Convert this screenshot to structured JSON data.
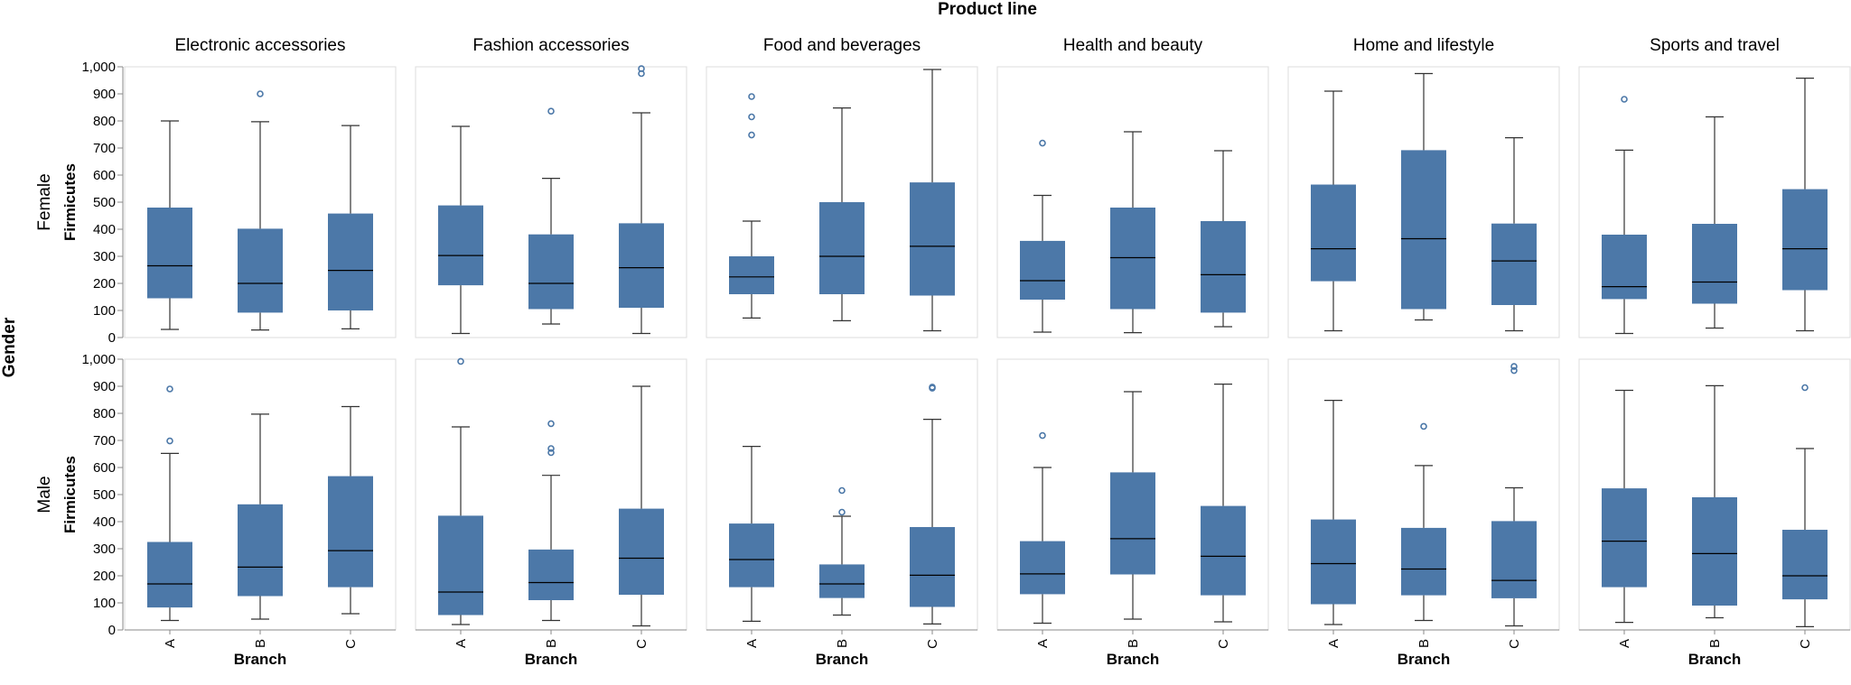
{
  "chart_data": {
    "type": "box",
    "title": "Product line",
    "row_title": "Gender",
    "xlabel": "Branch",
    "ylabel": "Firmicutes",
    "ylim": [
      0,
      1000
    ],
    "yticks": [
      0,
      100,
      200,
      300,
      400,
      500,
      600,
      700,
      800,
      900,
      1000
    ],
    "ytick_labels": [
      "0",
      "100",
      "200",
      "300",
      "400",
      "500",
      "600",
      "700",
      "800",
      "900",
      "1,000"
    ],
    "categories": [
      "A",
      "B",
      "C"
    ],
    "columns": [
      "Electronic accessories",
      "Fashion accessories",
      "Food and beverages",
      "Health and beauty",
      "Home and lifestyle",
      "Sports and travel"
    ],
    "rows": [
      "Female",
      "Male"
    ],
    "colors": {
      "box": "#4c78a8",
      "outlier": "#4c78a8",
      "whisker": "#333333",
      "median": "#000000",
      "panel_border": "#dddddd"
    },
    "boxes": [
      [
        [
          {
            "min": 30,
            "q1": 145,
            "median": 265,
            "q3": 480,
            "max": 800,
            "outliers": []
          },
          {
            "min": 28,
            "q1": 92,
            "median": 200,
            "q3": 402,
            "max": 797,
            "outliers": [
              900
            ]
          },
          {
            "min": 32,
            "q1": 100,
            "median": 248,
            "q3": 458,
            "max": 783,
            "outliers": []
          }
        ],
        [
          {
            "min": 15,
            "q1": 193,
            "median": 303,
            "q3": 488,
            "max": 780,
            "outliers": []
          },
          {
            "min": 50,
            "q1": 105,
            "median": 200,
            "q3": 381,
            "max": 588,
            "outliers": [
              836
            ]
          },
          {
            "min": 15,
            "q1": 110,
            "median": 258,
            "q3": 422,
            "max": 830,
            "outliers": [
              975,
              993
            ]
          }
        ],
        [
          {
            "min": 72,
            "q1": 160,
            "median": 224,
            "q3": 300,
            "max": 430,
            "outliers": [
              748,
              815,
              890
            ]
          },
          {
            "min": 62,
            "q1": 160,
            "median": 300,
            "q3": 500,
            "max": 848,
            "outliers": []
          },
          {
            "min": 25,
            "q1": 155,
            "median": 337,
            "q3": 573,
            "max": 990,
            "outliers": []
          }
        ],
        [
          {
            "min": 20,
            "q1": 140,
            "median": 210,
            "q3": 357,
            "max": 525,
            "outliers": [
              718
            ]
          },
          {
            "min": 18,
            "q1": 105,
            "median": 295,
            "q3": 480,
            "max": 760,
            "outliers": []
          },
          {
            "min": 40,
            "q1": 92,
            "median": 232,
            "q3": 430,
            "max": 690,
            "outliers": []
          }
        ],
        [
          {
            "min": 25,
            "q1": 208,
            "median": 328,
            "q3": 565,
            "max": 910,
            "outliers": []
          },
          {
            "min": 65,
            "q1": 105,
            "median": 365,
            "q3": 692,
            "max": 975,
            "outliers": []
          },
          {
            "min": 25,
            "q1": 120,
            "median": 283,
            "q3": 421,
            "max": 738,
            "outliers": []
          }
        ],
        [
          {
            "min": 15,
            "q1": 142,
            "median": 188,
            "q3": 380,
            "max": 692,
            "outliers": [
              880
            ]
          },
          {
            "min": 35,
            "q1": 125,
            "median": 205,
            "q3": 420,
            "max": 815,
            "outliers": []
          },
          {
            "min": 25,
            "q1": 175,
            "median": 328,
            "q3": 548,
            "max": 958,
            "outliers": []
          }
        ]
      ],
      [
        [
          {
            "min": 35,
            "q1": 83,
            "median": 170,
            "q3": 325,
            "max": 652,
            "outliers": [
              698,
              890
            ]
          },
          {
            "min": 40,
            "q1": 125,
            "median": 232,
            "q3": 464,
            "max": 797,
            "outliers": []
          },
          {
            "min": 60,
            "q1": 158,
            "median": 293,
            "q3": 568,
            "max": 825,
            "outliers": []
          }
        ],
        [
          {
            "min": 20,
            "q1": 55,
            "median": 140,
            "q3": 422,
            "max": 750,
            "outliers": [
              992
            ]
          },
          {
            "min": 35,
            "q1": 110,
            "median": 175,
            "q3": 297,
            "max": 571,
            "outliers": [
              655,
              670,
              762
            ]
          },
          {
            "min": 15,
            "q1": 130,
            "median": 265,
            "q3": 448,
            "max": 900,
            "outliers": []
          }
        ],
        [
          {
            "min": 32,
            "q1": 158,
            "median": 260,
            "q3": 393,
            "max": 678,
            "outliers": []
          },
          {
            "min": 55,
            "q1": 118,
            "median": 170,
            "q3": 242,
            "max": 420,
            "outliers": [
              435,
              515
            ]
          },
          {
            "min": 22,
            "q1": 85,
            "median": 202,
            "q3": 380,
            "max": 778,
            "outliers": [
              893,
              897
            ]
          }
        ],
        [
          {
            "min": 25,
            "q1": 132,
            "median": 207,
            "q3": 328,
            "max": 600,
            "outliers": [
              718
            ]
          },
          {
            "min": 40,
            "q1": 205,
            "median": 337,
            "q3": 582,
            "max": 880,
            "outliers": []
          },
          {
            "min": 30,
            "q1": 128,
            "median": 272,
            "q3": 458,
            "max": 908,
            "outliers": []
          }
        ],
        [
          {
            "min": 20,
            "q1": 95,
            "median": 245,
            "q3": 408,
            "max": 848,
            "outliers": []
          },
          {
            "min": 35,
            "q1": 128,
            "median": 225,
            "q3": 377,
            "max": 607,
            "outliers": [
              752
            ]
          },
          {
            "min": 15,
            "q1": 117,
            "median": 183,
            "q3": 402,
            "max": 525,
            "outliers": [
              958,
              973
            ]
          }
        ],
        [
          {
            "min": 28,
            "q1": 158,
            "median": 328,
            "q3": 523,
            "max": 885,
            "outliers": []
          },
          {
            "min": 45,
            "q1": 90,
            "median": 282,
            "q3": 490,
            "max": 902,
            "outliers": []
          },
          {
            "min": 12,
            "q1": 113,
            "median": 200,
            "q3": 370,
            "max": 670,
            "outliers": [
              895
            ]
          }
        ]
      ]
    ]
  }
}
